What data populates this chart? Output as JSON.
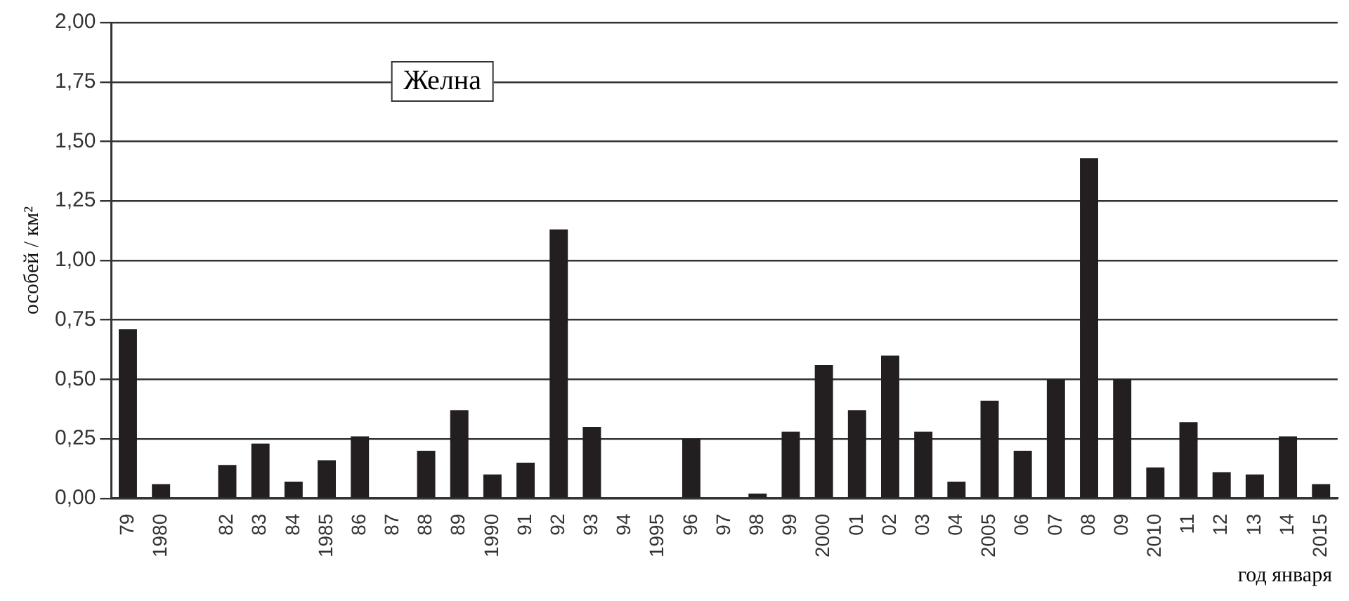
{
  "chart_data": {
    "type": "bar",
    "title": "Желна",
    "ylabel": "особей / км²",
    "xlabel": "год января",
    "categories": [
      "79",
      "1980",
      null,
      "82",
      "83",
      "84",
      "1985",
      "86",
      "87",
      "88",
      "89",
      "1990",
      "91",
      "92",
      "93",
      "94",
      "1995",
      "96",
      "97",
      "98",
      "99",
      "2000",
      "01",
      "02",
      "03",
      "04",
      "2005",
      "06",
      "07",
      "08",
      "09",
      "2010",
      "11",
      "12",
      "13",
      "14",
      "2015"
    ],
    "values": [
      0.71,
      0.06,
      0,
      0.14,
      0.23,
      0.07,
      0.16,
      0.26,
      0,
      0.2,
      0.37,
      0.1,
      0.15,
      1.13,
      0.3,
      0,
      0,
      0.25,
      0,
      0.02,
      0.28,
      0.56,
      0.37,
      0.6,
      0.28,
      0.07,
      0.41,
      0.2,
      0.5,
      1.43,
      0.5,
      0.13,
      0.32,
      0.11,
      0.1,
      0.26,
      0.06
    ],
    "color": "#231f20",
    "ylim": [
      0,
      2
    ],
    "yticks": [
      {
        "value": 0,
        "label": "0,00"
      },
      {
        "value": 0.25,
        "label": "0,25"
      },
      {
        "value": 0.5,
        "label": "0,50"
      },
      {
        "value": 0.75,
        "label": "0,75"
      },
      {
        "value": 1,
        "label": "1,00"
      },
      {
        "value": 1.25,
        "label": "1,25"
      },
      {
        "value": 1.5,
        "label": "1,50"
      },
      {
        "value": 1.75,
        "label": "1,75"
      },
      {
        "value": 2,
        "label": "2,00"
      }
    ],
    "grid": "y",
    "legend": false
  }
}
